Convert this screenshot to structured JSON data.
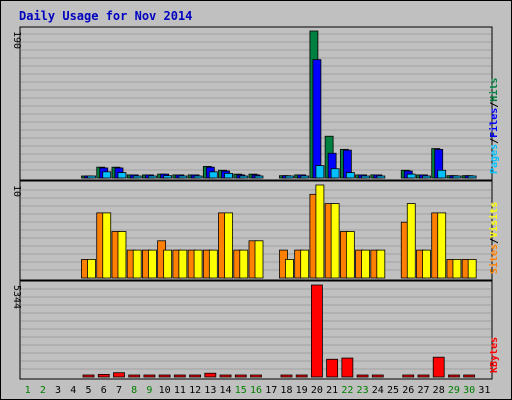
{
  "chart_data": [
    {
      "type": "bar",
      "title": "Daily Usage for Nov 2014",
      "ylabel_parts": [
        "Pages",
        "/",
        "Files",
        "/",
        "Hits"
      ],
      "ymax_label": "190",
      "ylim": [
        0,
        190
      ],
      "grid": true,
      "x": [
        "1",
        "2",
        "3",
        "4",
        "5",
        "6",
        "7",
        "8",
        "9",
        "10",
        "11",
        "12",
        "13",
        "14",
        "15",
        "16",
        "17",
        "18",
        "19",
        "20",
        "21",
        "22",
        "23",
        "24",
        "25",
        "26",
        "27",
        "28",
        "29",
        "30",
        "31"
      ],
      "series": [
        {
          "name": "Hits",
          "values": [
            0,
            0,
            0,
            0,
            2,
            14,
            14,
            4,
            4,
            5,
            4,
            4,
            15,
            10,
            5,
            5,
            0,
            3,
            4,
            190,
            54,
            37,
            4,
            4,
            0,
            10,
            4,
            38,
            3,
            3,
            0
          ]
        },
        {
          "name": "Files",
          "values": [
            0,
            0,
            0,
            0,
            2,
            13,
            13,
            4,
            4,
            5,
            4,
            4,
            14,
            9,
            4,
            4,
            0,
            3,
            4,
            153,
            32,
            36,
            4,
            4,
            0,
            9,
            4,
            37,
            3,
            3,
            0
          ]
        },
        {
          "name": "Pages",
          "values": [
            0,
            0,
            0,
            0,
            1,
            8,
            7,
            2,
            2,
            3,
            2,
            2,
            8,
            6,
            2,
            2,
            0,
            2,
            2,
            16,
            12,
            7,
            2,
            2,
            0,
            5,
            2,
            10,
            2,
            2,
            0
          ]
        }
      ]
    },
    {
      "type": "bar",
      "ylabel_parts": [
        "Sites",
        "/",
        "Visits"
      ],
      "ymax_label": "10",
      "ylim": [
        0,
        10
      ],
      "grid": true,
      "x": [
        "1",
        "2",
        "3",
        "4",
        "5",
        "6",
        "7",
        "8",
        "9",
        "10",
        "11",
        "12",
        "13",
        "14",
        "15",
        "16",
        "17",
        "18",
        "19",
        "20",
        "21",
        "22",
        "23",
        "24",
        "25",
        "26",
        "27",
        "28",
        "29",
        "30",
        "31"
      ],
      "series": [
        {
          "name": "Visits",
          "values": [
            0,
            0,
            0,
            0,
            2,
            7,
            5,
            3,
            3,
            4,
            3,
            3,
            3,
            7,
            3,
            4,
            0,
            3,
            3,
            9,
            8,
            5,
            3,
            3,
            0,
            6,
            3,
            7,
            2,
            2,
            0
          ]
        },
        {
          "name": "Sites",
          "values": [
            0,
            0,
            0,
            0,
            2,
            7,
            5,
            3,
            3,
            3,
            3,
            3,
            3,
            7,
            3,
            4,
            0,
            2,
            3,
            10,
            8,
            5,
            3,
            3,
            0,
            8,
            3,
            7,
            2,
            2,
            0
          ]
        }
      ]
    },
    {
      "type": "bar",
      "ylabel_parts": [
        "KBytes"
      ],
      "ymax_label": "5344",
      "ylim": [
        0,
        5344
      ],
      "grid": true,
      "x": [
        "1",
        "2",
        "3",
        "4",
        "5",
        "6",
        "7",
        "8",
        "9",
        "10",
        "11",
        "12",
        "13",
        "14",
        "15",
        "16",
        "17",
        "18",
        "19",
        "20",
        "21",
        "22",
        "23",
        "24",
        "25",
        "26",
        "27",
        "28",
        "29",
        "30",
        "31"
      ],
      "series": [
        {
          "name": "KBytes",
          "values": [
            0,
            0,
            0,
            0,
            60,
            150,
            250,
            60,
            60,
            60,
            60,
            60,
            220,
            60,
            60,
            60,
            0,
            60,
            60,
            5344,
            1030,
            1100,
            60,
            60,
            0,
            60,
            60,
            1150,
            60,
            60,
            0
          ]
        }
      ]
    }
  ],
  "colors": {
    "background": "#c0c0c0",
    "plot_bg": "#c0c0c0",
    "grid": "#a0a0a0",
    "title": "#0000c0",
    "hits": "#008040",
    "files": "#0000ff",
    "pages": "#00c0ff",
    "visits": "#ff8000",
    "sites": "#ffff00",
    "kbytes": "#ff0000",
    "weekend_label": "#008000",
    "weekday_label": "#000000"
  },
  "weekend_days": [
    "1",
    "2",
    "8",
    "9",
    "15",
    "16",
    "22",
    "23",
    "29",
    "30"
  ]
}
